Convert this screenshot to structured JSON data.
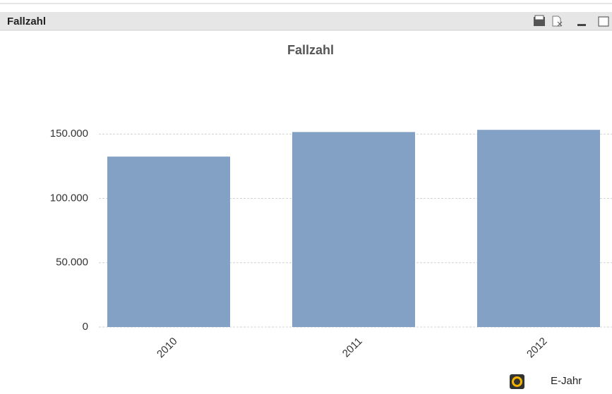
{
  "caption": "Fallzahl",
  "chart_data": {
    "type": "bar",
    "title": "Fallzahl",
    "x_label": "E-Jahr",
    "categories": [
      "2010",
      "2011",
      "2012"
    ],
    "values": [
      132500,
      151600,
      153300
    ],
    "color": "#82a1c4",
    "ylim": [
      0,
      160000
    ],
    "yticks": [
      0,
      {
        "value": 50000,
        "label": "50.000"
      },
      {
        "value": 100000,
        "label": "100.000"
      },
      {
        "value": 150000,
        "label": "150.000"
      }
    ],
    "grid": true
  }
}
